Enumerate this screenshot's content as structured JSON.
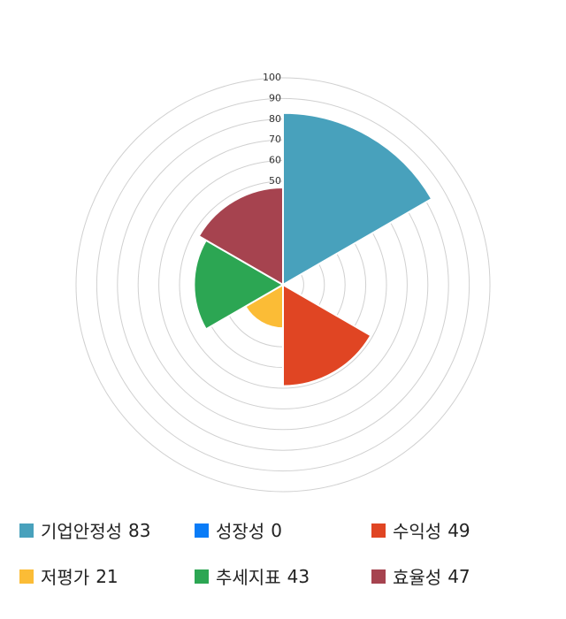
{
  "chart_data": {
    "type": "polarArea",
    "categories": [
      "기업안정성",
      "성장성",
      "수익성",
      "저평가",
      "추세지표",
      "효율성"
    ],
    "values": [
      83,
      0,
      49,
      21,
      43,
      47
    ],
    "colors": [
      "#48a1bc",
      "#0a7cf7",
      "#e04523",
      "#fbbc36",
      "#2ca653",
      "#a6434f"
    ],
    "rlim": [
      0,
      100
    ],
    "rticks": [
      10,
      20,
      30,
      40,
      50,
      60,
      70,
      80,
      90,
      100
    ]
  }
}
